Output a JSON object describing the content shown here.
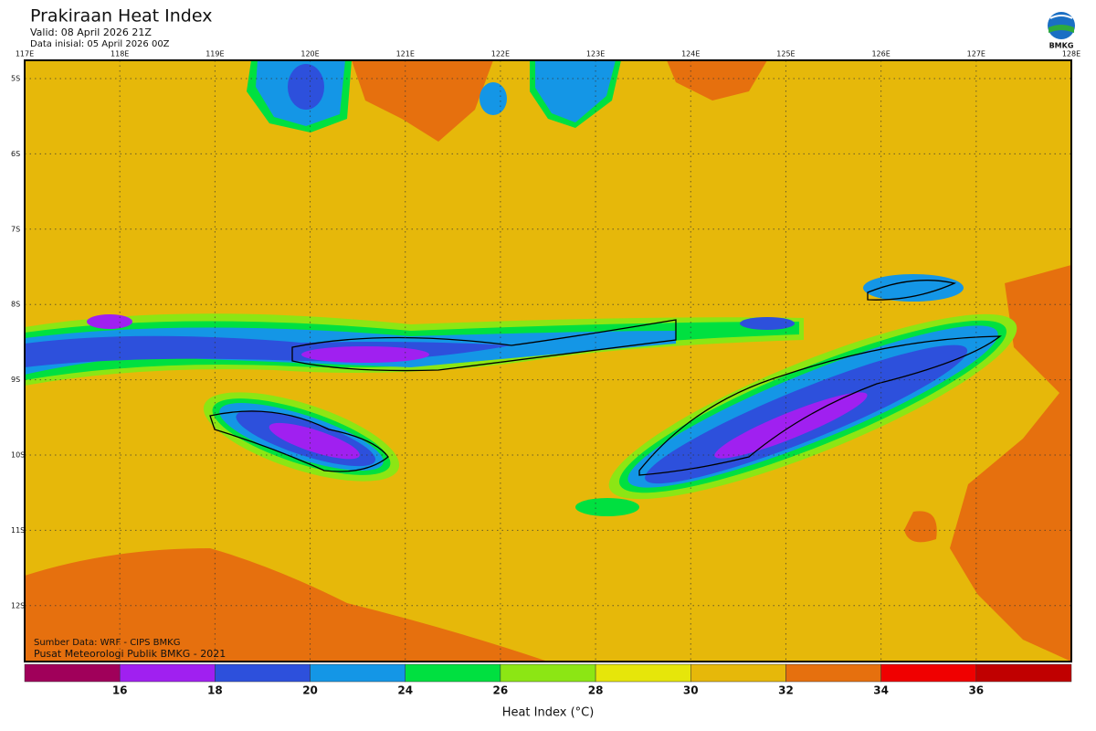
{
  "header": {
    "title": "Prakiraan Heat Index",
    "valid": "Valid: 08 April 2026 21Z",
    "initial": "Data inisial: 05 April 2026 00Z"
  },
  "logo": "BMKG",
  "map": {
    "lon_labels": [
      "117E",
      "118E",
      "119E",
      "120E",
      "121E",
      "122E",
      "123E",
      "124E",
      "125E",
      "126E",
      "127E",
      "128E"
    ],
    "lat_labels": [
      "5S",
      "6S",
      "7S",
      "8S",
      "9S",
      "10S",
      "11S",
      "12S"
    ],
    "credits": [
      "Sumber Data: WRF - CIPS BMKG",
      "Pusat Meteorologi Publik BMKG - 2021"
    ]
  },
  "colorbar": {
    "colors": [
      "#a0005a",
      "#a020f0",
      "#2d50dc",
      "#1496e6",
      "#00e040",
      "#8ce614",
      "#e6e60a",
      "#e6b80a",
      "#e6700e",
      "#f00000",
      "#c00000"
    ],
    "ticks": [
      16,
      18,
      20,
      24,
      26,
      28,
      30,
      32,
      34,
      36
    ],
    "label": "Heat Index (°C)"
  }
}
